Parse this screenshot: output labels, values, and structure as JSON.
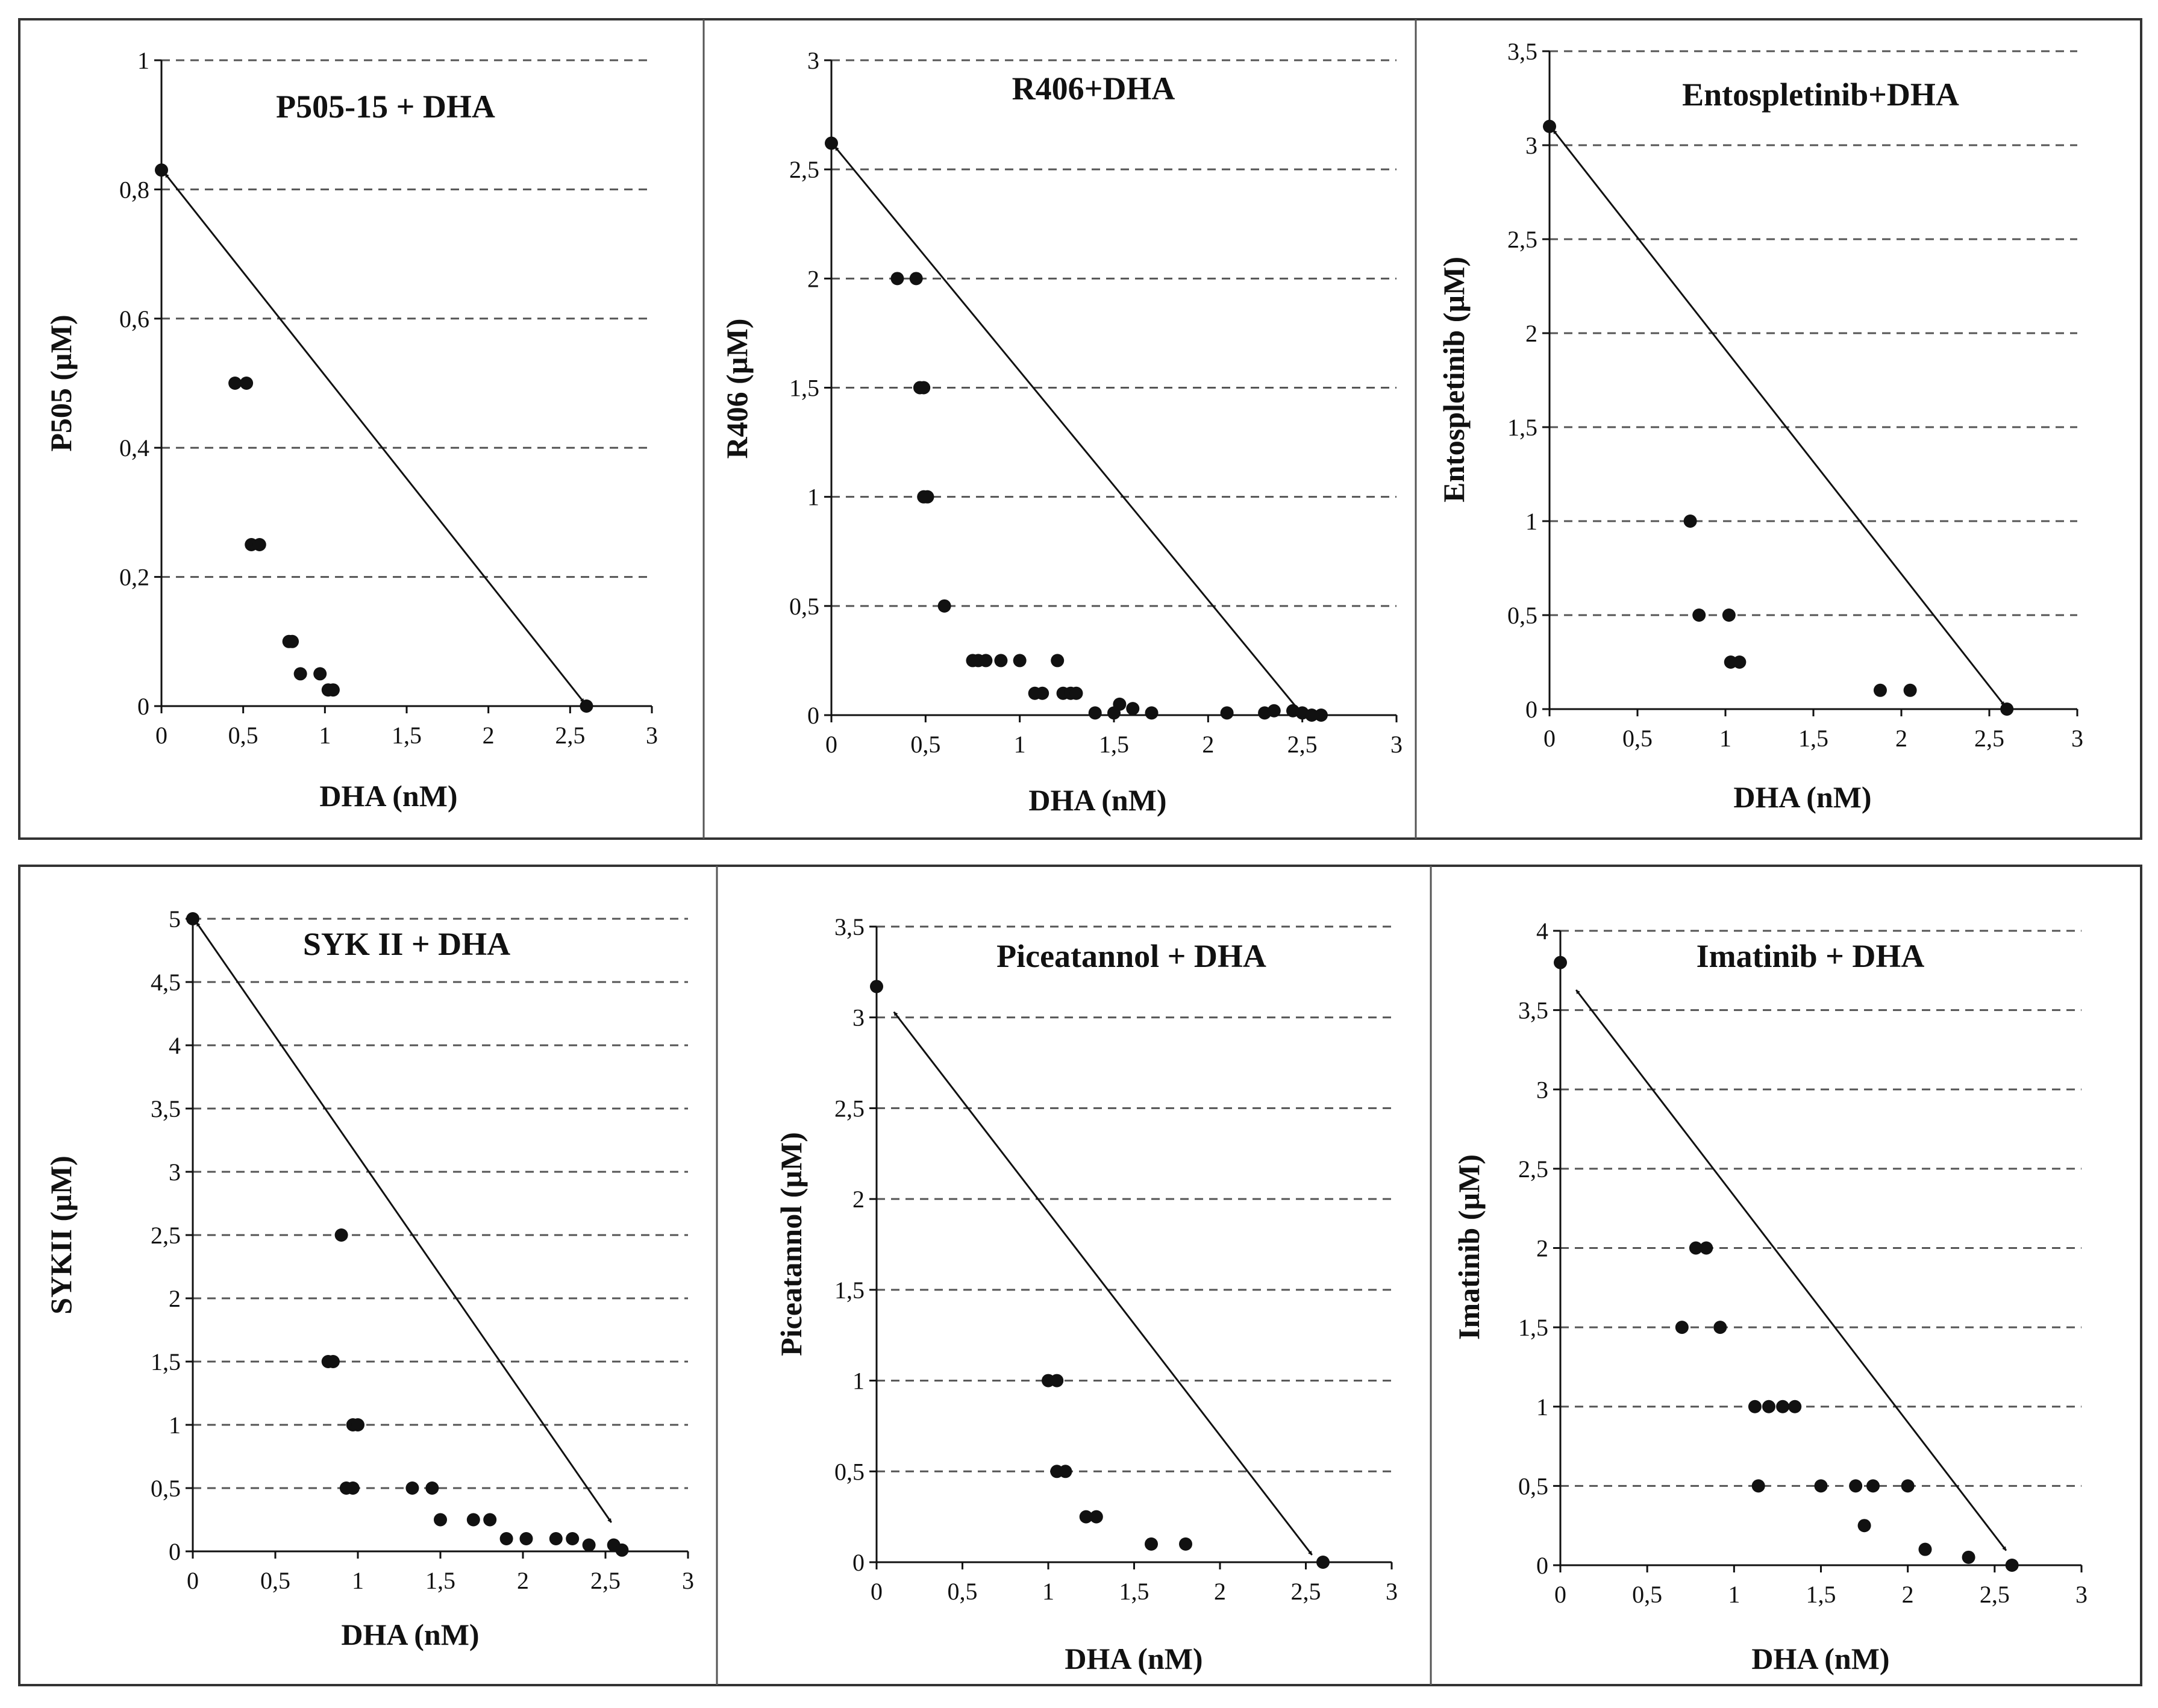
{
  "figure": {
    "colors": {
      "ink": "#111111",
      "frame": "#333333",
      "grid": "#555555",
      "background": "#ffffff"
    }
  },
  "chart_data": [
    {
      "type": "scatter",
      "title": "P505-15 + DHA",
      "xlabel": "DHA (nM)",
      "ylabel": "P505 (µM)",
      "xlim": [
        0,
        3
      ],
      "ylim": [
        0,
        1
      ],
      "xticks": [
        0,
        0.5,
        1,
        1.5,
        2,
        2.5,
        3
      ],
      "xtick_labels": [
        "0",
        "0,5",
        "1",
        "1,5",
        "2",
        "2,5",
        "3"
      ],
      "yticks": [
        0,
        0.2,
        0.4,
        0.6,
        0.8,
        1
      ],
      "ytick_labels": [
        "0",
        "0,2",
        "0,4",
        "0,6",
        "0,8",
        "1"
      ],
      "grid": true,
      "isobole": {
        "from": [
          0,
          0.83
        ],
        "to": [
          2.6,
          0
        ]
      },
      "points": [
        [
          0,
          0.83
        ],
        [
          0.45,
          0.5
        ],
        [
          0.52,
          0.5
        ],
        [
          0.55,
          0.25
        ],
        [
          0.6,
          0.25
        ],
        [
          0.78,
          0.1
        ],
        [
          0.8,
          0.1
        ],
        [
          0.85,
          0.05
        ],
        [
          0.97,
          0.05
        ],
        [
          1.02,
          0.025
        ],
        [
          1.05,
          0.025
        ],
        [
          2.6,
          0
        ]
      ]
    },
    {
      "type": "scatter",
      "title": "R406+DHA",
      "xlabel": "DHA (nM)",
      "ylabel": "R406 (µM)",
      "xlim": [
        0,
        3
      ],
      "ylim": [
        0,
        3
      ],
      "xticks": [
        0,
        0.5,
        1,
        1.5,
        2,
        2.5,
        3
      ],
      "xtick_labels": [
        "0",
        "0,5",
        "1",
        "1,5",
        "2",
        "2,5",
        "3"
      ],
      "yticks": [
        0,
        0.5,
        1,
        1.5,
        2,
        2.5,
        3
      ],
      "ytick_labels": [
        "0",
        "0,5",
        "1",
        "1,5",
        "2",
        "2,5",
        "3"
      ],
      "grid": true,
      "isobole": {
        "from": [
          0,
          2.62
        ],
        "to": [
          2.5,
          0
        ]
      },
      "points": [
        [
          0,
          2.62
        ],
        [
          0.35,
          2
        ],
        [
          0.45,
          2
        ],
        [
          0.47,
          1.5
        ],
        [
          0.49,
          1.5
        ],
        [
          0.49,
          1
        ],
        [
          0.51,
          1
        ],
        [
          0.6,
          0.5
        ],
        [
          0.75,
          0.25
        ],
        [
          0.78,
          0.25
        ],
        [
          0.82,
          0.25
        ],
        [
          0.9,
          0.25
        ],
        [
          1,
          0.25
        ],
        [
          1.08,
          0.1
        ],
        [
          1.12,
          0.1
        ],
        [
          1.2,
          0.25
        ],
        [
          1.23,
          0.1
        ],
        [
          1.27,
          0.1
        ],
        [
          1.3,
          0.1
        ],
        [
          1.4,
          0.01
        ],
        [
          1.5,
          0.01
        ],
        [
          1.53,
          0.05
        ],
        [
          1.6,
          0.03
        ],
        [
          1.7,
          0.01
        ],
        [
          2.1,
          0.01
        ],
        [
          2.3,
          0.01
        ],
        [
          2.35,
          0.02
        ],
        [
          2.45,
          0.02
        ],
        [
          2.5,
          0.01
        ],
        [
          2.55,
          0
        ],
        [
          2.6,
          0
        ]
      ]
    },
    {
      "type": "scatter",
      "title": "Entospletinib+DHA",
      "xlabel": "DHA (nM)",
      "ylabel": "Entospletinib (µM)",
      "xlim": [
        0,
        3
      ],
      "ylim": [
        0,
        3.5
      ],
      "xticks": [
        0,
        0.5,
        1,
        1.5,
        2,
        2.5,
        3
      ],
      "xtick_labels": [
        "0",
        "0,5",
        "1",
        "1,5",
        "2",
        "2,5",
        "3"
      ],
      "yticks": [
        0,
        0.5,
        1,
        1.5,
        2,
        2.5,
        3,
        3.5
      ],
      "ytick_labels": [
        "0",
        "0,5",
        "1",
        "1,5",
        "2",
        "2,5",
        "3",
        "3,5"
      ],
      "grid": true,
      "isobole": {
        "from": [
          0,
          3.1
        ],
        "to": [
          2.6,
          0
        ]
      },
      "points": [
        [
          0,
          3.1
        ],
        [
          0.8,
          1
        ],
        [
          0.85,
          0.5
        ],
        [
          1.02,
          0.5
        ],
        [
          1.03,
          0.25
        ],
        [
          1.08,
          0.25
        ],
        [
          1.88,
          0.1
        ],
        [
          2.05,
          0.1
        ],
        [
          2.6,
          0
        ]
      ]
    },
    {
      "type": "scatter",
      "title": "SYK II + DHA",
      "xlabel": "DHA (nM)",
      "ylabel": "SYKII (µM)",
      "xlim": [
        0,
        3
      ],
      "ylim": [
        0,
        5
      ],
      "xticks": [
        0,
        0.5,
        1,
        1.5,
        2,
        2.5,
        3
      ],
      "xtick_labels": [
        "0",
        "0,5",
        "1",
        "1,5",
        "2",
        "2,5",
        "3"
      ],
      "yticks": [
        0,
        0.5,
        1,
        1.5,
        2,
        2.5,
        3,
        3.5,
        4,
        4.5,
        5
      ],
      "ytick_labels": [
        "0",
        "0,5",
        "1",
        "1,5",
        "2",
        "2,5",
        "3",
        "3,5",
        "4",
        "4,5",
        "5"
      ],
      "grid": true,
      "isobole": {
        "from": [
          0,
          5
        ],
        "to": [
          2.55,
          0.2
        ]
      },
      "points": [
        [
          0,
          5
        ],
        [
          0.9,
          2.5
        ],
        [
          0.82,
          1.5
        ],
        [
          0.85,
          1.5
        ],
        [
          0.97,
          1
        ],
        [
          1,
          1
        ],
        [
          0.93,
          0.5
        ],
        [
          0.97,
          0.5
        ],
        [
          1.33,
          0.5
        ],
        [
          1.45,
          0.5
        ],
        [
          1.5,
          0.25
        ],
        [
          1.7,
          0.25
        ],
        [
          1.8,
          0.25
        ],
        [
          1.9,
          0.1
        ],
        [
          2.02,
          0.1
        ],
        [
          2.2,
          0.1
        ],
        [
          2.3,
          0.1
        ],
        [
          2.4,
          0.05
        ],
        [
          2.55,
          0.05
        ],
        [
          2.6,
          0.01
        ]
      ]
    },
    {
      "type": "scatter",
      "title": "Piceatannol + DHA",
      "xlabel": "DHA (nM)",
      "ylabel": "Piceatannol (µM)",
      "xlim": [
        0,
        3
      ],
      "ylim": [
        0,
        3.5
      ],
      "xticks": [
        0,
        0.5,
        1,
        1.5,
        2,
        2.5,
        3
      ],
      "xtick_labels": [
        "0",
        "0,5",
        "1",
        "1,5",
        "2",
        "2,5",
        "3"
      ],
      "yticks": [
        0,
        0.5,
        1,
        1.5,
        2,
        2.5,
        3,
        3.5
      ],
      "ytick_labels": [
        "0",
        "0,5",
        "1",
        "1,5",
        "2",
        "2,5",
        "3",
        "3,5"
      ],
      "grid": true,
      "isobole": {
        "from": [
          0.08,
          3.05
        ],
        "to": [
          2.55,
          0.02
        ]
      },
      "points": [
        [
          0,
          3.17
        ],
        [
          1,
          1
        ],
        [
          1.05,
          1
        ],
        [
          1.05,
          0.5
        ],
        [
          1.1,
          0.5
        ],
        [
          1.22,
          0.25
        ],
        [
          1.28,
          0.25
        ],
        [
          1.6,
          0.1
        ],
        [
          1.8,
          0.1
        ],
        [
          2.6,
          0
        ]
      ]
    },
    {
      "type": "scatter",
      "title": "Imatinib + DHA",
      "xlabel": "DHA (nM)",
      "ylabel": "Imatinib (µM)",
      "xlim": [
        0,
        3
      ],
      "ylim": [
        0,
        4
      ],
      "xticks": [
        0,
        0.5,
        1,
        1.5,
        2,
        2.5,
        3
      ],
      "xtick_labels": [
        "0",
        "0,5",
        "1",
        "1,5",
        "2",
        "2,5",
        "3"
      ],
      "yticks": [
        0,
        0.5,
        1,
        1.5,
        2,
        2.5,
        3,
        3.5,
        4
      ],
      "ytick_labels": [
        "0",
        "0,5",
        "1",
        "1,5",
        "2",
        "2,5",
        "3",
        "3,5",
        "4"
      ],
      "grid": true,
      "isobole": {
        "from": [
          0.07,
          3.65
        ],
        "to": [
          2.58,
          0.07
        ]
      },
      "points": [
        [
          0,
          3.8
        ],
        [
          0.78,
          2
        ],
        [
          0.84,
          2
        ],
        [
          0.7,
          1.5
        ],
        [
          0.92,
          1.5
        ],
        [
          1.12,
          1
        ],
        [
          1.2,
          1
        ],
        [
          1.28,
          1
        ],
        [
          1.35,
          1
        ],
        [
          1.14,
          0.5
        ],
        [
          1.5,
          0.5
        ],
        [
          1.7,
          0.5
        ],
        [
          1.8,
          0.5
        ],
        [
          2,
          0.5
        ],
        [
          1.75,
          0.25
        ],
        [
          2.1,
          0.1
        ],
        [
          2.35,
          0.05
        ],
        [
          2.6,
          0
        ]
      ]
    }
  ]
}
